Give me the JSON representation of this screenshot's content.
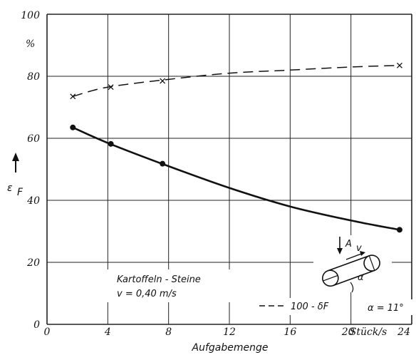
{
  "chart_data": {
    "type": "line",
    "xlabel": "Aufgabemenge",
    "x_unit": "Stück/s",
    "ylabel": "ε",
    "ylabel_sub": "F",
    "y_unit": "%",
    "xlim": [
      0,
      24
    ],
    "ylim": [
      0,
      100
    ],
    "x_ticks": [
      "0",
      "4",
      "8",
      "12",
      "16",
      "20",
      "24"
    ],
    "y_ticks": [
      "0",
      "20",
      "40",
      "60",
      "80",
      "100"
    ],
    "grid": true,
    "series": [
      {
        "name": "100 - δF",
        "style": "dashed",
        "marker": "x",
        "x": [
          1.7,
          4.2,
          7.6,
          23.2
        ],
        "y": [
          73.5,
          76.5,
          78.5,
          83.5
        ],
        "curve_x": [
          1.7,
          4,
          8,
          12,
          16,
          20,
          23.2
        ],
        "curve_y": [
          73.5,
          76.5,
          79,
          81,
          82,
          83,
          83.5
        ]
      },
      {
        "name": "εF",
        "style": "solid",
        "marker": "dot",
        "x": [
          1.7,
          4.2,
          7.6,
          23.2
        ],
        "y": [
          63.5,
          58.2,
          51.8,
          30.5
        ],
        "curve_x": [
          1.7,
          4,
          8,
          12,
          16,
          20,
          23.2
        ],
        "curve_y": [
          63.5,
          58.5,
          51,
          44,
          38,
          33.5,
          30.5
        ]
      }
    ],
    "annotations": {
      "material": "Kartoffeln - Steine",
      "speed": "v = 0,40 m/s",
      "legend_dashed": "100 - δF",
      "alpha_label": "α = 11°",
      "schematic": {
        "label_a": "A",
        "label_v": "v",
        "label_alpha": "α"
      }
    },
    "colors": {
      "ink": "#111111",
      "grid": "#222222",
      "background": "#ffffff"
    }
  }
}
